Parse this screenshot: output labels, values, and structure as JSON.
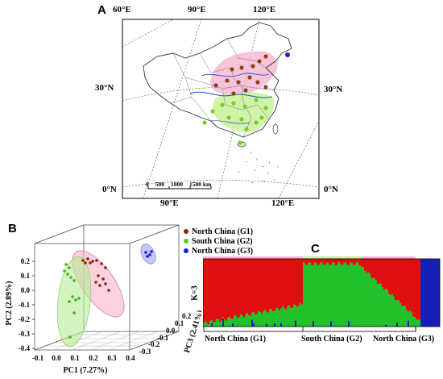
{
  "panel_a": {
    "letter": "A",
    "top_longitudes": [
      "60°E",
      "90°E",
      "120°E"
    ],
    "bottom_longitudes": [
      "90°E",
      "120°E"
    ],
    "lat_30_left": "30°N",
    "lat_30_right": "30°N",
    "lat_0_left": "0°N",
    "lat_0_right": "0°N",
    "scalebar": [
      "0",
      "500",
      "1000",
      "1500 km"
    ],
    "colors": {
      "north": "#8B4513",
      "south": "#7CCD2A",
      "g3": "#1a1adb",
      "pink": "#f4a6c8",
      "green": "#c8f0a0"
    }
  },
  "panel_b": {
    "letter": "B",
    "legend": [
      {
        "label": "North China (G1)",
        "color": "#8B2500"
      },
      {
        "label": "South China (G2)",
        "color": "#5fc620"
      },
      {
        "label": "North China (G3)",
        "color": "#1a1adb"
      }
    ],
    "pc1_label": "PC1 (7.27%)",
    "pc2_label": "PC2 (2.89%)",
    "pc3_label": "PC3 (2.41%)",
    "pc1_ticks": [
      "-0.1",
      "0.0",
      "0.1",
      "0.2",
      "0.3",
      "0.4"
    ],
    "pc2_ticks": [
      "0.2",
      "0.1",
      "0.0",
      "-0.1",
      "-0.2",
      "-0.3",
      "-0.4"
    ],
    "pc3_ticks": [
      "0.2",
      "0.1",
      "0.0",
      "-0.1",
      "-0.2",
      "-0.3"
    ]
  },
  "panel_c": {
    "letter": "C",
    "k_label": "K=3",
    "groups": [
      "North China (G1)",
      "South China (G2)",
      "North China (G3)"
    ],
    "colors": {
      "red": "#e01010",
      "green": "#22c02a",
      "blue": "#1520b8"
    }
  }
}
